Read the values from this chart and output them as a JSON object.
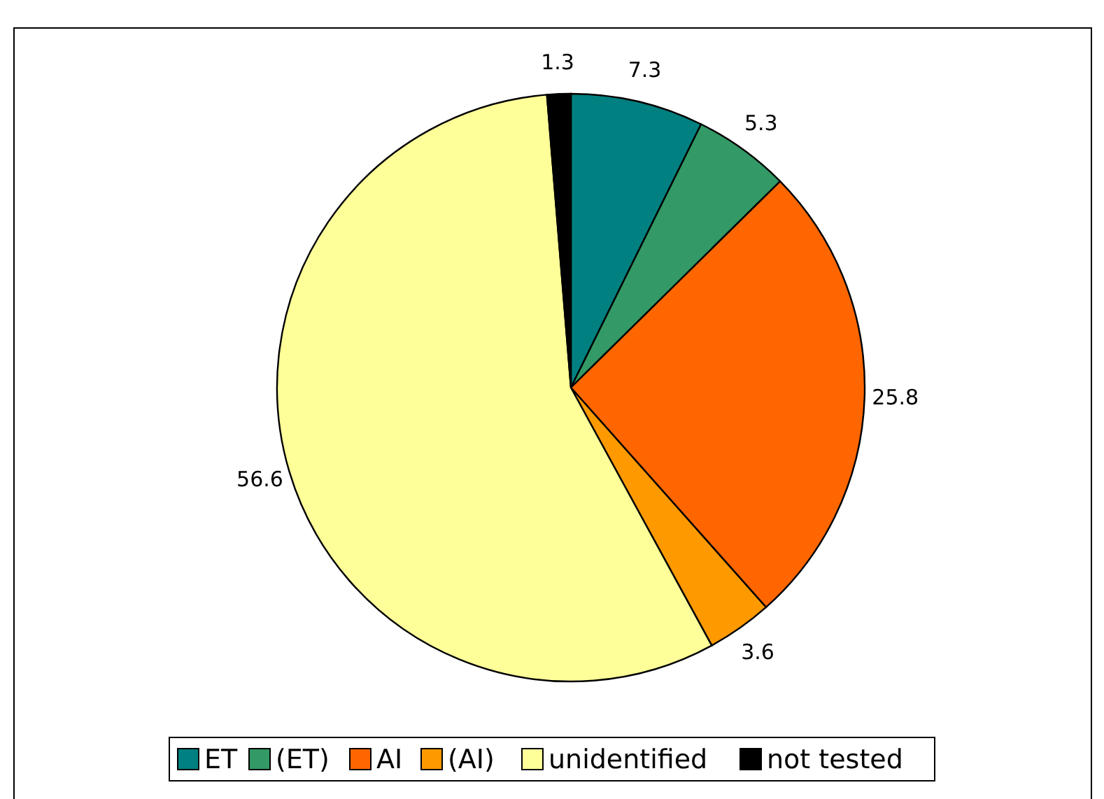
{
  "chart_data": {
    "type": "pie",
    "categories": [
      "ET",
      "(ET)",
      "AI",
      "(AI)",
      "unidentified",
      "not tested"
    ],
    "values": [
      7.3,
      5.3,
      25.8,
      3.6,
      56.6,
      1.3
    ],
    "colors": [
      "#008080",
      "#339966",
      "#ff6600",
      "#ff9900",
      "#ffff99",
      "#000000"
    ],
    "data_labels": true,
    "legend": "bottom"
  }
}
